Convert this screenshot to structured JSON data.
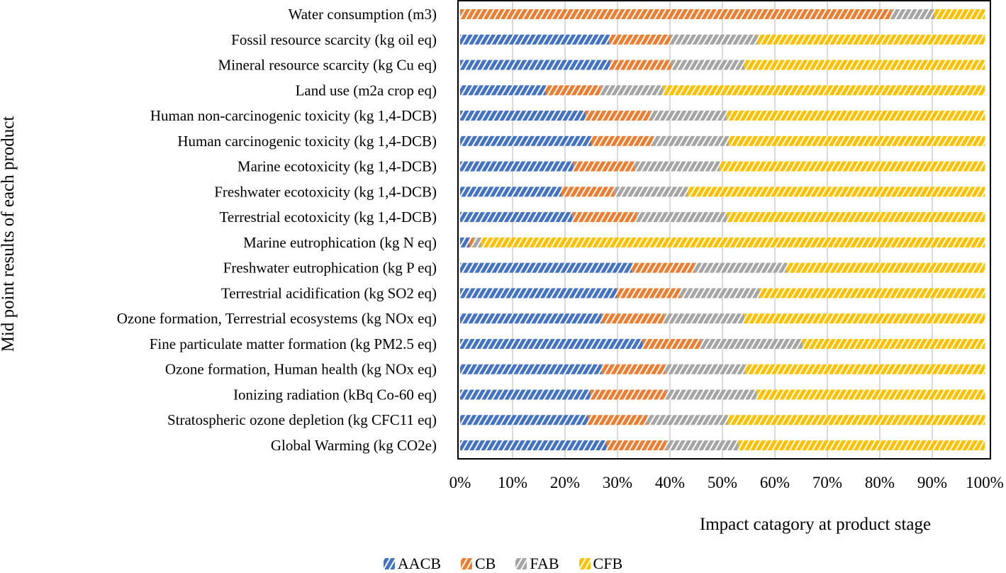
{
  "chart_data": {
    "type": "bar",
    "orientation": "horizontal",
    "stacked": "percent",
    "title": "",
    "xlabel": "Impact catagory at product stage",
    "ylabel": "Mid point results of each product",
    "xlim": [
      0,
      100
    ],
    "xticks": [
      "0%",
      "10%",
      "20%",
      "30%",
      "40%",
      "50%",
      "60%",
      "70%",
      "80%",
      "90%",
      "100%"
    ],
    "grid": "vertical",
    "legend": "bottom",
    "categories": [
      "Water consumption (m3)",
      "Fossil resource scarcity (kg oil eq)",
      "Mineral resource scarcity (kg Cu eq)",
      "Land use (m2a crop eq)",
      "Human non-carcinogenic toxicity (kg 1,4-DCB)",
      "Human carcinogenic toxicity (kg 1,4-DCB)",
      "Marine ecotoxicity (kg 1,4-DCB)",
      "Freshwater ecotoxicity (kg 1,4-DCB)",
      "Terrestrial ecotoxicity (kg 1,4-DCB)",
      "Marine eutrophication (kg N eq)",
      "Freshwater eutrophication (kg P eq)",
      "Terrestrial acidification (kg SO2 eq)",
      "Ozone formation, Terrestrial ecosystems (kg NOx eq)",
      "Fine particulate matter formation (kg PM2.5 eq)",
      "Ozone formation, Human health (kg NOx eq)",
      "Ionizing radiation (kBq Co-60 eq)",
      "Stratospheric ozone depletion (kg CFC11 eq)",
      "Global Warming (kg CO2e)"
    ],
    "series": [
      {
        "name": "AACB",
        "color": "#4472C4",
        "values": [
          0,
          28.4,
          28.6,
          16.3,
          23.9,
          25.0,
          21.6,
          19.3,
          21.4,
          1.8,
          32.7,
          29.9,
          27.0,
          34.8,
          27.0,
          24.8,
          24.4,
          27.9
        ]
      },
      {
        "name": "CB",
        "color": "#ED7D31",
        "values": [
          82.2,
          11.7,
          11.6,
          10.5,
          12.3,
          11.7,
          11.7,
          10.1,
          12.3,
          0.8,
          11.9,
          12.0,
          11.9,
          11.1,
          12.1,
          14.5,
          11.2,
          11.3
        ]
      },
      {
        "name": "FAB",
        "color": "#A5A5A5",
        "values": [
          8.2,
          16.6,
          14.0,
          11.9,
          14.6,
          14.5,
          16.2,
          14.0,
          17.2,
          1.4,
          17.7,
          15.2,
          15.3,
          19.4,
          15.2,
          17.2,
          15.4,
          13.9
        ]
      },
      {
        "name": "CFB",
        "color": "#FFC000",
        "values": [
          9.6,
          43.3,
          45.8,
          61.3,
          49.2,
          48.8,
          50.5,
          56.6,
          49.1,
          96.0,
          37.7,
          42.9,
          45.8,
          34.7,
          45.7,
          43.5,
          49.0,
          46.9
        ]
      }
    ],
    "pattern": "diagonal-hatch"
  }
}
